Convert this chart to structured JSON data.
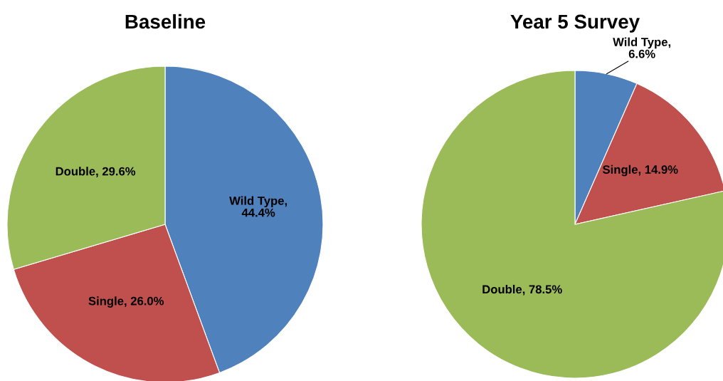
{
  "chart_data": [
    {
      "type": "pie",
      "title": "Baseline",
      "categories": [
        "Wild Type",
        "Single",
        "Double"
      ],
      "values": [
        44.4,
        26.0,
        29.6
      ],
      "value_labels": [
        ",\n44.4%",
        ", 26.0%",
        ", 29.6%"
      ],
      "colors": [
        "#4f81bd",
        "#c0504d",
        "#9bbb59"
      ]
    },
    {
      "type": "pie",
      "title": "Year 5 Survey",
      "categories": [
        "Wild Type",
        "Single",
        "Double"
      ],
      "values": [
        6.6,
        14.9,
        78.5
      ],
      "value_labels": [
        ",\n6.6%",
        ", 14.9%",
        ", 78.5%"
      ],
      "colors": [
        "#4f81bd",
        "#c0504d",
        "#9bbb59"
      ]
    }
  ]
}
